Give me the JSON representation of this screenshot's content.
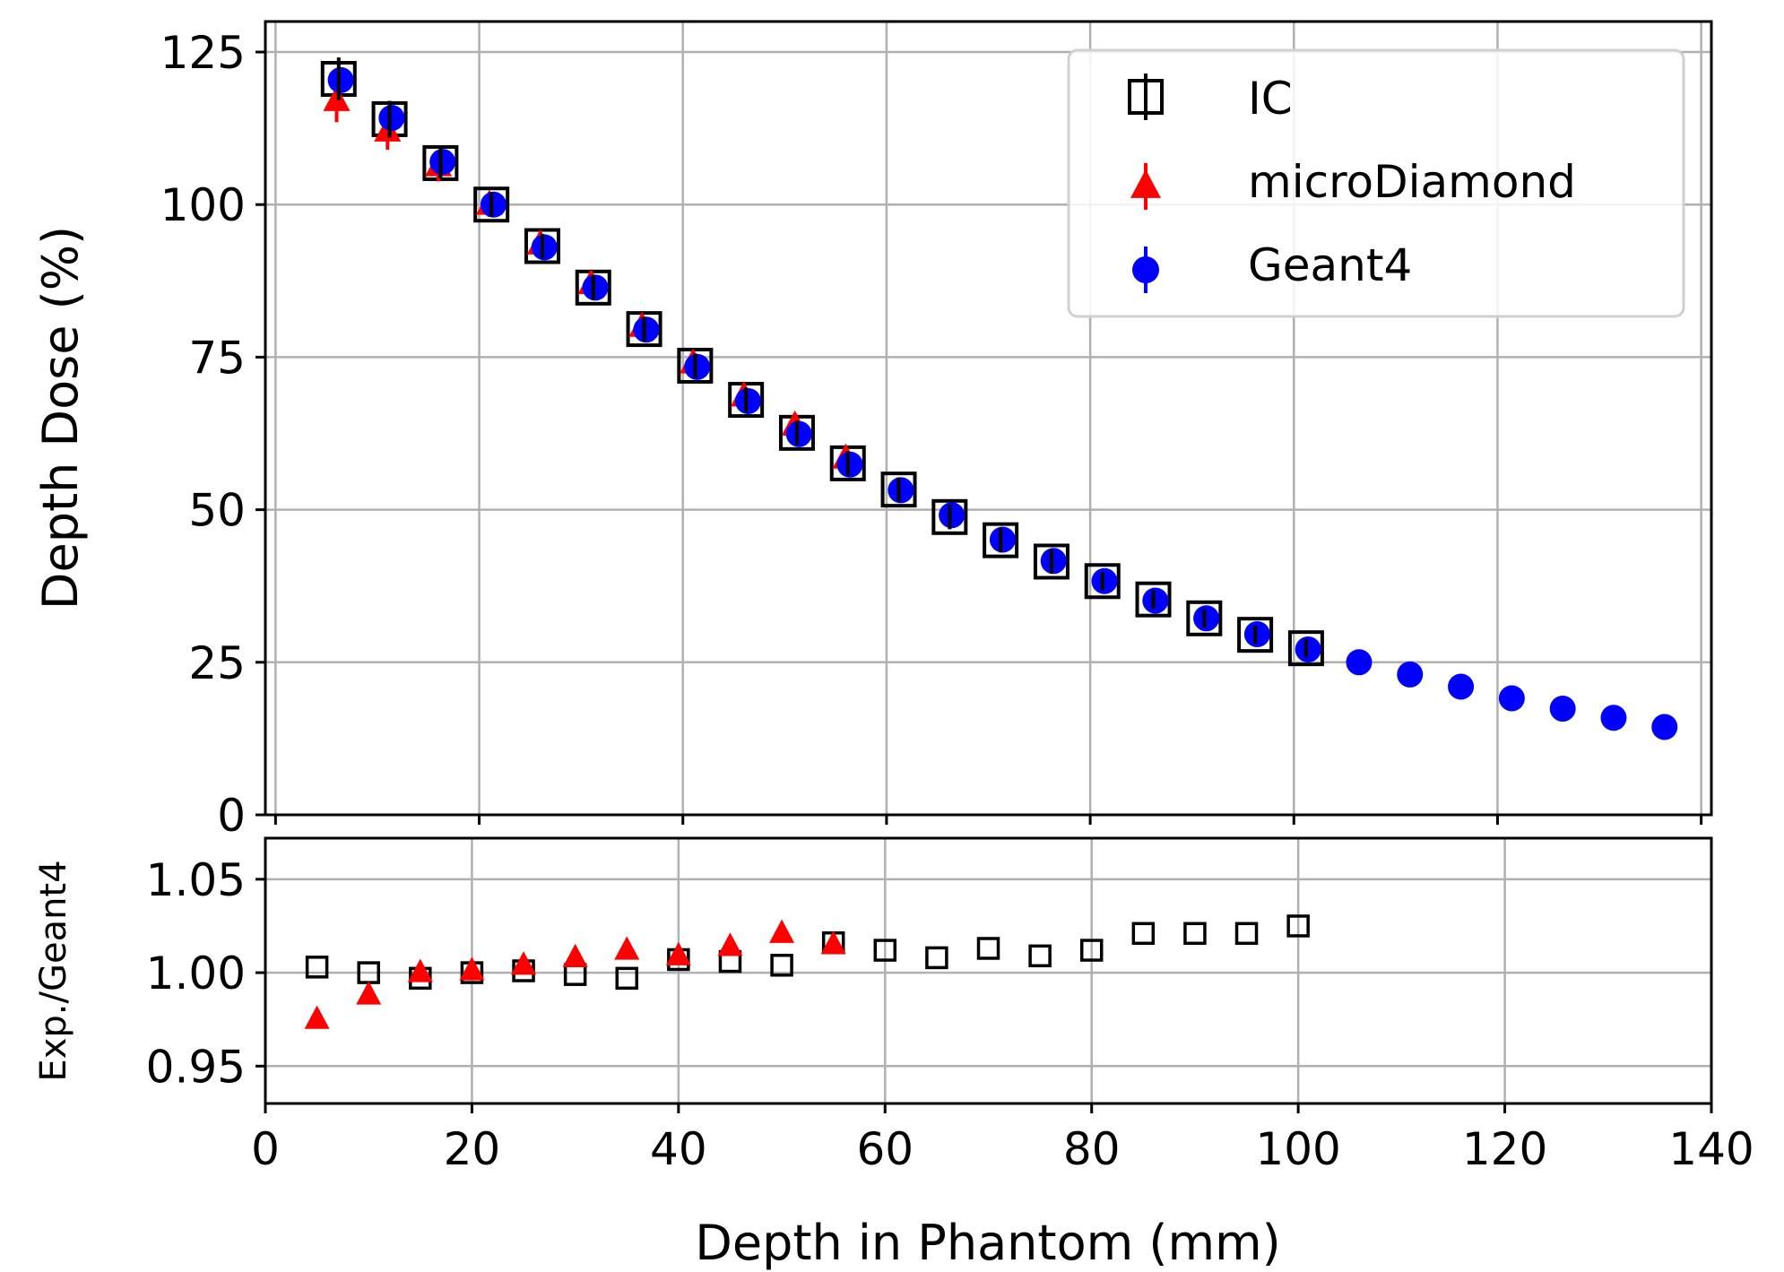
{
  "chart_data": [
    {
      "type": "scatter",
      "panel": "top",
      "xlabel": "",
      "ylabel": "Depth Dose (%)",
      "xlim": [
        -1,
        141
      ],
      "ylim": [
        0,
        130
      ],
      "xticks": [
        0,
        20,
        40,
        60,
        80,
        100,
        120,
        140
      ],
      "yticks": [
        0,
        25,
        50,
        75,
        100,
        125
      ],
      "ytick_labels": [
        "0",
        "25",
        "50",
        "75",
        "100",
        "125"
      ],
      "grid": true,
      "legend_position": "top-right",
      "legend": [
        "IC",
        "microDiamond",
        "Geant4"
      ],
      "series": [
        {
          "name": "IC",
          "color": "#000000",
          "marker": "open-square",
          "x": [
            5,
            10,
            15,
            20,
            25,
            30,
            35,
            40,
            45,
            50,
            55,
            60,
            65,
            70,
            75,
            80,
            85,
            90,
            95,
            100
          ],
          "y": [
            120.6,
            114.0,
            106.8,
            100.0,
            93.2,
            86.4,
            79.6,
            73.6,
            68.0,
            62.6,
            57.6,
            53.3,
            48.8,
            45.0,
            41.5,
            38.3,
            35.3,
            32.2,
            29.5,
            27.3
          ],
          "err": [
            3.5,
            3.0,
            2.5,
            2.0,
            2.0,
            2.0,
            2.0,
            2.0,
            2.0,
            2.0,
            2.0,
            2.0,
            2.0,
            2.0,
            2.0,
            1.5,
            1.5,
            1.5,
            1.5,
            1.5
          ]
        },
        {
          "name": "microDiamond",
          "color": "#ff0000",
          "marker": "triangle",
          "x": [
            5,
            10,
            15,
            20,
            25,
            30,
            35,
            40,
            45,
            50,
            55
          ],
          "y": [
            117.0,
            112.0,
            106.3,
            100.0,
            93.5,
            87.0,
            80.0,
            74.0,
            68.6,
            63.8,
            58.4
          ],
          "err": [
            3.5,
            3.0,
            2.5,
            2.0,
            2.0,
            2.0,
            2.0,
            2.0,
            2.0,
            2.0,
            2.0
          ]
        },
        {
          "name": "Geant4",
          "color": "#0000ff",
          "marker": "circle",
          "x": [
            5,
            10,
            15,
            20,
            25,
            30,
            35,
            40,
            45,
            50,
            55,
            60,
            65,
            70,
            75,
            80,
            85,
            90,
            95,
            100,
            105,
            110,
            115,
            120,
            125,
            130,
            135
          ],
          "y": [
            120.4,
            114.2,
            107.0,
            100.0,
            93.0,
            86.4,
            79.5,
            73.4,
            67.8,
            62.4,
            57.4,
            53.2,
            49.1,
            45.1,
            41.6,
            38.3,
            35.1,
            32.2,
            29.6,
            27.1,
            25.0,
            23.0,
            21.0,
            19.1,
            17.4,
            15.9,
            14.4
          ],
          "err": [
            1.0,
            1.0,
            1.0,
            1.0,
            1.0,
            1.0,
            1.0,
            1.0,
            1.0,
            1.0,
            1.0,
            1.0,
            1.0,
            1.0,
            1.0,
            1.0,
            1.0,
            1.0,
            1.0,
            1.0,
            0,
            0,
            0,
            0,
            0,
            0,
            0
          ]
        }
      ]
    },
    {
      "type": "scatter",
      "panel": "bottom",
      "xlabel": "Depth in Phantom (mm)",
      "ylabel": "Exp./Geant4",
      "xlim": [
        0,
        140
      ],
      "ylim": [
        0.93,
        1.072
      ],
      "xticks": [
        0,
        20,
        40,
        60,
        80,
        100,
        120,
        140
      ],
      "xtick_labels": [
        "0",
        "20",
        "40",
        "60",
        "80",
        "100",
        "120",
        "140"
      ],
      "yticks": [
        0.95,
        1.0,
        1.05
      ],
      "ytick_labels": [
        "0.95",
        "1.00",
        "1.05"
      ],
      "grid": true,
      "series": [
        {
          "name": "IC",
          "color": "#000000",
          "marker": "open-square",
          "x": [
            5,
            10,
            15,
            20,
            25,
            30,
            35,
            40,
            45,
            50,
            55,
            60,
            65,
            70,
            75,
            80,
            85,
            90,
            95,
            100
          ],
          "y": [
            1.003,
            1.0,
            0.997,
            1.0,
            1.001,
            0.999,
            0.997,
            1.007,
            1.006,
            1.004,
            1.016,
            1.012,
            1.008,
            1.013,
            1.009,
            1.012,
            1.021,
            1.021,
            1.021,
            1.025
          ]
        },
        {
          "name": "microDiamond",
          "color": "#ff0000",
          "marker": "triangle",
          "x": [
            5,
            10,
            15,
            20,
            25,
            30,
            35,
            40,
            45,
            50,
            55
          ],
          "y": [
            0.975,
            0.988,
            1.0,
            1.001,
            1.004,
            1.008,
            1.012,
            1.009,
            1.014,
            1.021,
            1.015
          ]
        }
      ]
    }
  ]
}
